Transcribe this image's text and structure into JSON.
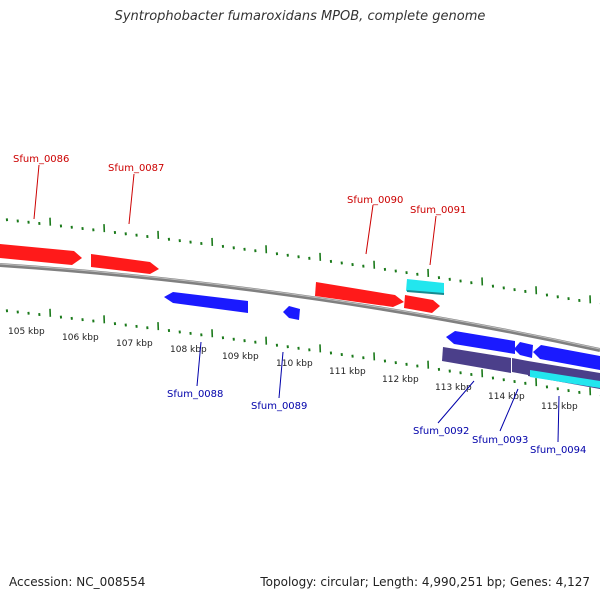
{
  "title": "Syntrophobacter fumaroxidans MPOB, complete genome",
  "footer": {
    "accession": "Accession: NC_008554",
    "stats": "Topology: circular; Length: 4,990,251 bp; Genes: 4,127"
  },
  "colors": {
    "forward_gene": "#ff1a1a",
    "reverse_gene": "#1a1aff",
    "highlight_gene": "#22e6ee",
    "reverse_dark": "#4b3f8a",
    "backbone": "#808080",
    "tick": "#1b7a1b",
    "forward_label": "#cc0000",
    "reverse_label": "#0000aa"
  },
  "scale_ticks": [
    "105 kbp",
    "106 kbp",
    "107 kbp",
    "108 kbp",
    "109 kbp",
    "110 kbp",
    "111 kbp",
    "112 kbp",
    "113 kbp",
    "114 kbp",
    "115 kbp"
  ],
  "gene_labels": {
    "forward": [
      "Sfum_0086",
      "Sfum_0087",
      "Sfum_0090",
      "Sfum_0091"
    ],
    "reverse": [
      "Sfum_0088",
      "Sfum_0089",
      "Sfum_0092",
      "Sfum_0093",
      "Sfum_0094"
    ]
  }
}
